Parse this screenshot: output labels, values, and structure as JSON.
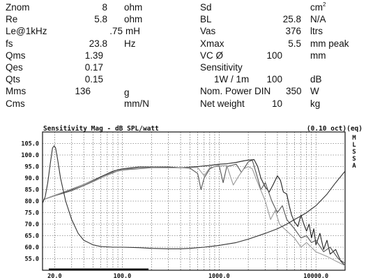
{
  "specs_left": [
    {
      "label": "Znom",
      "value": "8",
      "unit": "ohm"
    },
    {
      "label": "Re",
      "value": "5.8",
      "unit": "ohm"
    },
    {
      "label": "Le@1kHz",
      "value": ".75",
      "unit": "mH"
    },
    {
      "label": "fs",
      "value": "23.8",
      "unit": "Hz"
    },
    {
      "label": "Qms",
      "value": "1.39",
      "unit": ""
    },
    {
      "label": "Qes",
      "value": "0.17",
      "unit": ""
    },
    {
      "label": "Qts",
      "value": "0.15",
      "unit": ""
    },
    {
      "label": "Mms",
      "value": "136",
      "unit": "g"
    },
    {
      "label": "Cms",
      "value": "",
      "unit": "mm/N"
    }
  ],
  "specs_right": [
    {
      "label": "Sd",
      "value": "",
      "unit": "cm",
      "unit_sup": "2"
    },
    {
      "label": "BL",
      "value": "25.8",
      "unit": "N/A"
    },
    {
      "label": "Vas",
      "value": "376",
      "unit": "ltrs"
    },
    {
      "label": "Xmax",
      "value": "5.5",
      "unit": "mm peak"
    },
    {
      "label": "VC Ø",
      "value": "100",
      "unit": "mm"
    },
    {
      "label": "Sensitivity",
      "value": "",
      "unit": ""
    },
    {
      "label": "1W / 1m",
      "value": "100",
      "unit": "dB"
    },
    {
      "label": "Nom. Power DIN",
      "value": "350",
      "unit": "W"
    },
    {
      "label": "Net weight",
      "value": "10",
      "unit": "kg"
    }
  ],
  "chart_data": {
    "type": "line",
    "title": "Sensitivity Mag - dB SPL/watt",
    "title_right": "(0.10 oct)(eq)",
    "side_label": "MLSSA",
    "xscale": "log",
    "xlim": [
      15,
      20000
    ],
    "ylim": [
      50,
      110
    ],
    "xticks": [
      {
        "value": 20,
        "label": "20.0"
      },
      {
        "value": 100,
        "label": "100.0"
      },
      {
        "value": 1000,
        "label": "1000.0"
      },
      {
        "value": 10000,
        "label": "10000.0"
      }
    ],
    "yticks": [
      {
        "value": 105,
        "label": "105.0"
      },
      {
        "value": 100,
        "label": "100.0"
      },
      {
        "value": 95,
        "label": "95.0"
      },
      {
        "value": 90,
        "label": "90.0"
      },
      {
        "value": 85,
        "label": "85.0"
      },
      {
        "value": 80,
        "label": "80.0"
      },
      {
        "value": 75,
        "label": "75.0"
      },
      {
        "value": 70,
        "label": "70.0"
      },
      {
        "value": 65,
        "label": "65.0"
      },
      {
        "value": 60,
        "label": "60.0"
      },
      {
        "value": 55,
        "label": "55.0"
      }
    ],
    "grid": true,
    "series": [
      {
        "color": "#222222",
        "points": [
          [
            15,
            80.5
          ],
          [
            20,
            82.5
          ],
          [
            30,
            85
          ],
          [
            50,
            89
          ],
          [
            80,
            93
          ],
          [
            100,
            94
          ],
          [
            150,
            94.8
          ],
          [
            200,
            94.8
          ],
          [
            300,
            94.8
          ],
          [
            400,
            94.5
          ],
          [
            600,
            95
          ],
          [
            800,
            95.5
          ],
          [
            1000,
            96
          ],
          [
            1200,
            96.2
          ],
          [
            1500,
            96.8
          ],
          [
            1800,
            97.5
          ],
          [
            2000,
            97.8
          ],
          [
            2300,
            98
          ],
          [
            2500,
            95
          ],
          [
            2700,
            90
          ],
          [
            3000,
            86
          ],
          [
            3300,
            84
          ],
          [
            3600,
            87
          ],
          [
            4000,
            91
          ],
          [
            4300,
            89
          ],
          [
            4600,
            84
          ],
          [
            5000,
            83
          ],
          [
            5300,
            78
          ],
          [
            5600,
            74
          ],
          [
            6000,
            71
          ],
          [
            6500,
            69
          ],
          [
            7000,
            74
          ],
          [
            7500,
            70
          ],
          [
            8000,
            67
          ],
          [
            8500,
            70
          ],
          [
            9000,
            64
          ],
          [
            9500,
            68
          ],
          [
            10000,
            61
          ],
          [
            11000,
            66
          ],
          [
            12000,
            59
          ],
          [
            13000,
            63
          ],
          [
            14000,
            57
          ],
          [
            16000,
            59
          ],
          [
            18000,
            54
          ],
          [
            20000,
            52
          ]
        ]
      },
      {
        "color": "#555555",
        "points": [
          [
            15,
            80.5
          ],
          [
            20,
            82.3
          ],
          [
            30,
            84.5
          ],
          [
            50,
            88.5
          ],
          [
            80,
            92.5
          ],
          [
            100,
            93.5
          ],
          [
            200,
            94.5
          ],
          [
            400,
            94.5
          ],
          [
            500,
            94.3
          ],
          [
            600,
            92
          ],
          [
            650,
            85
          ],
          [
            700,
            90
          ],
          [
            800,
            94
          ],
          [
            900,
            95
          ],
          [
            1000,
            95.5
          ],
          [
            1100,
            88
          ],
          [
            1200,
            95
          ],
          [
            1500,
            96
          ],
          [
            1700,
            92.5
          ],
          [
            2000,
            97
          ],
          [
            2200,
            97.8
          ],
          [
            2500,
            90
          ],
          [
            2700,
            85
          ],
          [
            3000,
            88
          ],
          [
            3500,
            80
          ],
          [
            4000,
            75
          ],
          [
            4500,
            78
          ],
          [
            5000,
            72
          ],
          [
            6000,
            68
          ],
          [
            7000,
            64
          ],
          [
            8000,
            65
          ],
          [
            9000,
            62
          ],
          [
            10000,
            63
          ],
          [
            12000,
            58
          ],
          [
            14000,
            60
          ],
          [
            17000,
            55
          ],
          [
            20000,
            53
          ]
        ]
      },
      {
        "color": "#999999",
        "points": [
          [
            15,
            80.5
          ],
          [
            20,
            82.5
          ],
          [
            50,
            88.8
          ],
          [
            100,
            93.8
          ],
          [
            200,
            94.6
          ],
          [
            400,
            94.5
          ],
          [
            600,
            94.6
          ],
          [
            700,
            91
          ],
          [
            800,
            94.5
          ],
          [
            1000,
            95.2
          ],
          [
            1200,
            95.5
          ],
          [
            1400,
            87
          ],
          [
            1600,
            91
          ],
          [
            1800,
            94
          ],
          [
            2000,
            95
          ],
          [
            2200,
            94
          ],
          [
            2500,
            88
          ],
          [
            3000,
            80
          ],
          [
            3400,
            72
          ],
          [
            3800,
            76
          ],
          [
            4200,
            70
          ],
          [
            5000,
            67
          ],
          [
            6000,
            64
          ],
          [
            7000,
            60
          ],
          [
            8000,
            62
          ],
          [
            10000,
            58
          ],
          [
            13000,
            56
          ],
          [
            16000,
            54
          ],
          [
            20000,
            52
          ]
        ]
      },
      {
        "color": "#333333",
        "points": [
          [
            15,
            79
          ],
          [
            16,
            82
          ],
          [
            17,
            88
          ],
          [
            18,
            96
          ],
          [
            19,
            103
          ],
          [
            19.8,
            104
          ],
          [
            20.5,
            103
          ],
          [
            21.5,
            98
          ],
          [
            23,
            90
          ],
          [
            26,
            80
          ],
          [
            30,
            72
          ],
          [
            35,
            66
          ],
          [
            40,
            63
          ],
          [
            50,
            61
          ],
          [
            60,
            60.3
          ],
          [
            80,
            60
          ],
          [
            100,
            60
          ],
          [
            150,
            59.8
          ],
          [
            200,
            59.5
          ],
          [
            300,
            59.3
          ],
          [
            400,
            59.3
          ],
          [
            500,
            59.5
          ],
          [
            700,
            60
          ],
          [
            1000,
            60.8
          ],
          [
            1500,
            62
          ],
          [
            2000,
            63.5
          ],
          [
            3000,
            66
          ],
          [
            4000,
            68
          ],
          [
            5000,
            70
          ],
          [
            6000,
            72
          ],
          [
            7000,
            73.5
          ],
          [
            8000,
            75
          ],
          [
            10000,
            78
          ],
          [
            13000,
            83
          ],
          [
            16000,
            88
          ],
          [
            20000,
            93
          ]
        ]
      }
    ]
  }
}
